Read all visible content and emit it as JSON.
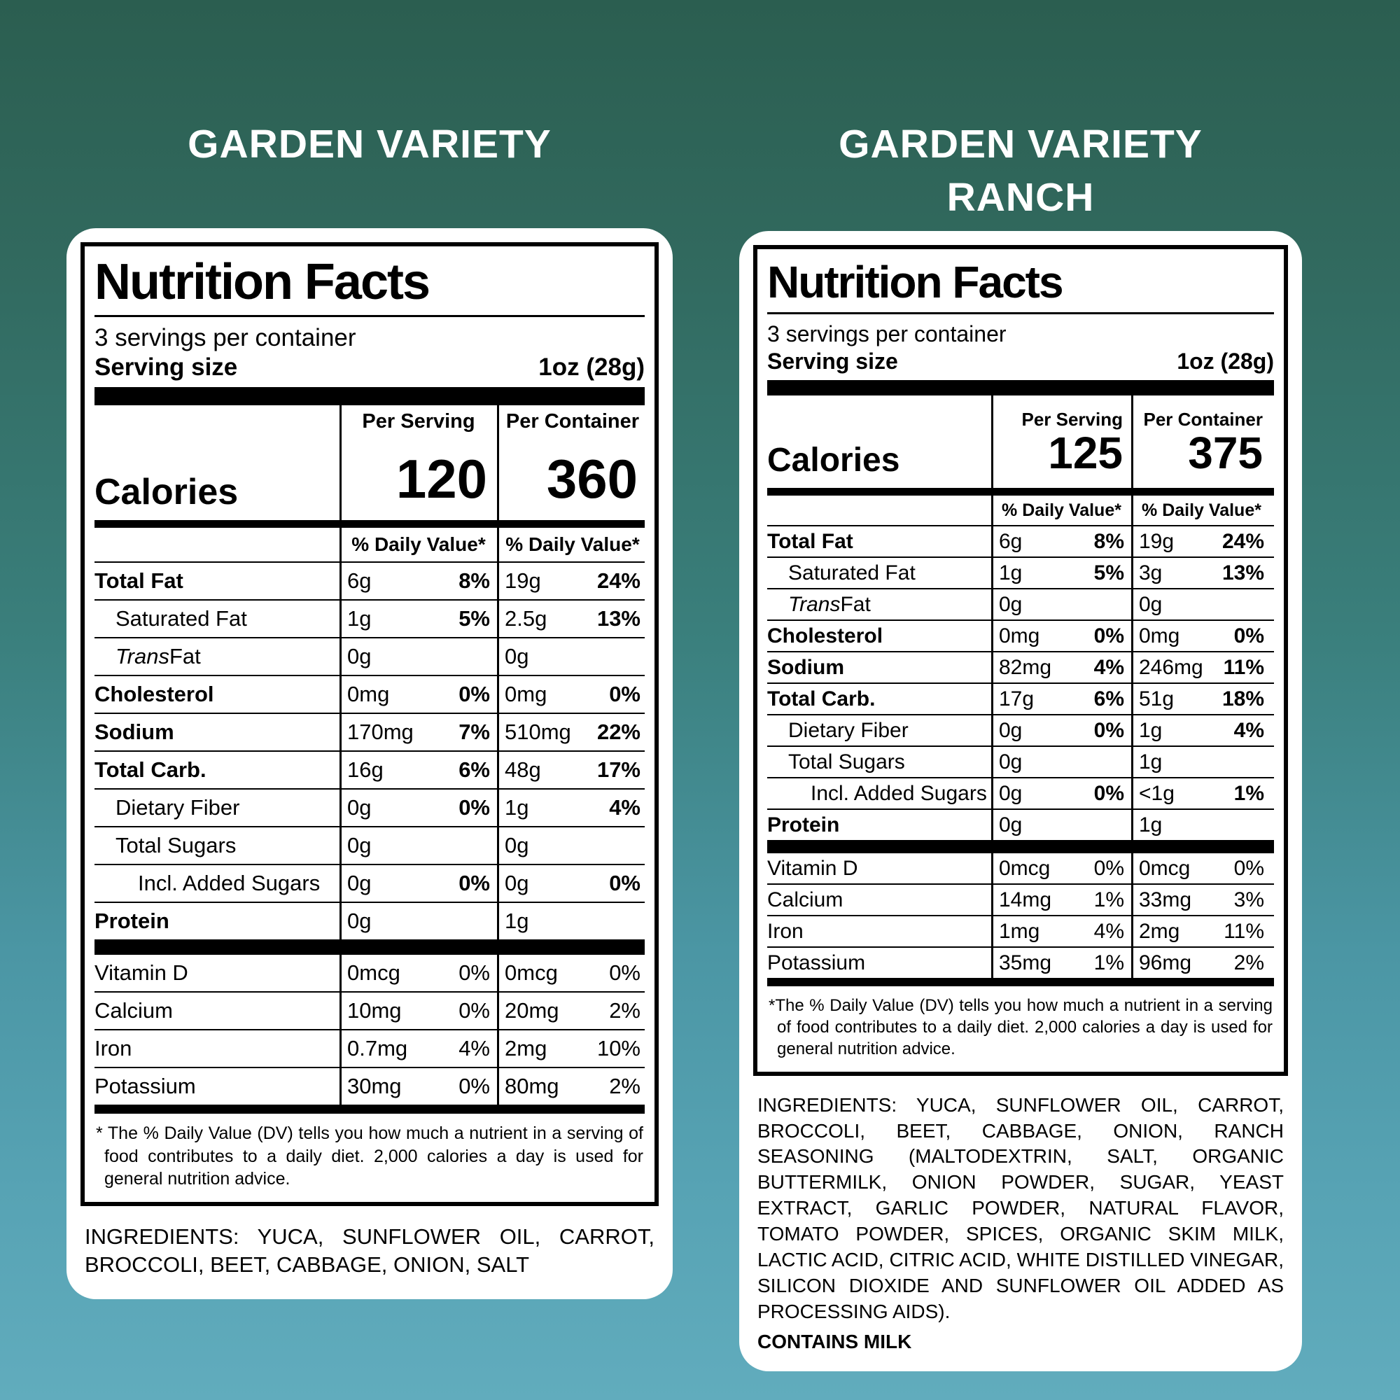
{
  "background": {
    "gradient_top": "#2b5e50",
    "gradient_mid": "#3a7f7c",
    "gradient_bottom": "#61acbd",
    "title_color": "#ffffff"
  },
  "labels": [
    {
      "title_line1": "GARDEN VARIETY",
      "title_line2": "",
      "nf": {
        "heading": "Nutrition Facts",
        "servings_per_container": "3 servings per container",
        "serving_size_label": "Serving size",
        "serving_size_value": "1oz (28g)",
        "per_serving_header": "Per Serving",
        "per_container_header": "Per Container",
        "calories_label": "Calories",
        "calories_per_serving": "120",
        "calories_per_container": "360",
        "daily_value_header": "% Daily Value*",
        "rows": [
          {
            "name": "Total Fat",
            "style": "bold",
            "s_amt": "6g",
            "s_dv": "8%",
            "c_amt": "19g",
            "c_dv": "24%"
          },
          {
            "name": "Saturated Fat",
            "style": "indent",
            "s_amt": "1g",
            "s_dv": "5%",
            "c_amt": "2.5g",
            "c_dv": "13%"
          },
          {
            "name": "Trans Fat",
            "style": "indent-italic",
            "s_amt": "0g",
            "s_dv": "",
            "c_amt": "0g",
            "c_dv": ""
          },
          {
            "name": "Cholesterol",
            "style": "bold",
            "s_amt": "0mg",
            "s_dv": "0%",
            "c_amt": "0mg",
            "c_dv": "0%"
          },
          {
            "name": "Sodium",
            "style": "bold",
            "s_amt": "170mg",
            "s_dv": "7%",
            "c_amt": "510mg",
            "c_dv": "22%"
          },
          {
            "name": "Total Carb.",
            "style": "bold",
            "s_amt": "16g",
            "s_dv": "6%",
            "c_amt": "48g",
            "c_dv": "17%"
          },
          {
            "name": "Dietary Fiber",
            "style": "indent",
            "s_amt": "0g",
            "s_dv": "0%",
            "c_amt": "1g",
            "c_dv": "4%"
          },
          {
            "name": "Total Sugars",
            "style": "indent",
            "s_amt": "0g",
            "s_dv": "",
            "c_amt": "0g",
            "c_dv": ""
          },
          {
            "name": "Incl. Added Sugars",
            "style": "indent2",
            "s_amt": "0g",
            "s_dv": "0%",
            "c_amt": "0g",
            "c_dv": "0%"
          },
          {
            "name": "Protein",
            "style": "bold",
            "s_amt": "0g",
            "s_dv": "",
            "c_amt": "1g",
            "c_dv": ""
          }
        ],
        "vitamin_rows": [
          {
            "name": "Vitamin D",
            "style": "plain",
            "s_amt": "0mcg",
            "s_dv": "0%",
            "c_amt": "0mcg",
            "c_dv": "0%"
          },
          {
            "name": "Calcium",
            "style": "plain",
            "s_amt": "10mg",
            "s_dv": "0%",
            "c_amt": "20mg",
            "c_dv": "2%"
          },
          {
            "name": "Iron",
            "style": "plain",
            "s_amt": "0.7mg",
            "s_dv": "4%",
            "c_amt": "2mg",
            "c_dv": "10%"
          },
          {
            "name": "Potassium",
            "style": "plain",
            "s_amt": "30mg",
            "s_dv": "0%",
            "c_amt": "80mg",
            "c_dv": "2%"
          }
        ],
        "footnote": "* The % Daily Value (DV) tells you how much a nutrient in a serving of food contributes to a daily diet. 2,000 calories a day is used for general nutrition advice."
      },
      "ingredients": "INGREDIENTS: YUCA, SUNFLOWER OIL, CARROT, BROCCOLI, BEET, CABBAGE, ONION, SALT",
      "contains": ""
    },
    {
      "title_line1": "GARDEN VARIETY",
      "title_line2": "RANCH",
      "nf": {
        "heading": "Nutrition Facts",
        "servings_per_container": "3 servings per container",
        "serving_size_label": "Serving size",
        "serving_size_value": "1oz (28g)",
        "per_serving_header": "Per Serving",
        "per_container_header": "Per Container",
        "calories_label": "Calories",
        "calories_per_serving": "125",
        "calories_per_container": "375",
        "daily_value_header": "% Daily Value*",
        "rows": [
          {
            "name": "Total Fat",
            "style": "bold",
            "s_amt": "6g",
            "s_dv": "8%",
            "c_amt": "19g",
            "c_dv": "24%"
          },
          {
            "name": "Saturated Fat",
            "style": "indent",
            "s_amt": "1g",
            "s_dv": "5%",
            "c_amt": "3g",
            "c_dv": "13%"
          },
          {
            "name": "Trans Fat",
            "style": "indent-italic",
            "s_amt": "0g",
            "s_dv": "",
            "c_amt": "0g",
            "c_dv": ""
          },
          {
            "name": "Cholesterol",
            "style": "bold",
            "s_amt": "0mg",
            "s_dv": "0%",
            "c_amt": "0mg",
            "c_dv": "0%"
          },
          {
            "name": "Sodium",
            "style": "bold",
            "s_amt": "82mg",
            "s_dv": "4%",
            "c_amt": "246mg",
            "c_dv": "11%"
          },
          {
            "name": "Total Carb.",
            "style": "bold",
            "s_amt": "17g",
            "s_dv": "6%",
            "c_amt": "51g",
            "c_dv": "18%"
          },
          {
            "name": "Dietary Fiber",
            "style": "indent",
            "s_amt": "0g",
            "s_dv": "0%",
            "c_amt": "1g",
            "c_dv": "4%"
          },
          {
            "name": "Total Sugars",
            "style": "indent",
            "s_amt": "0g",
            "s_dv": "",
            "c_amt": "1g",
            "c_dv": ""
          },
          {
            "name": "Incl. Added Sugars",
            "style": "indent2",
            "s_amt": "0g",
            "s_dv": "0%",
            "c_amt": "<1g",
            "c_dv": "1%"
          },
          {
            "name": "Protein",
            "style": "bold",
            "s_amt": "0g",
            "s_dv": "",
            "c_amt": "1g",
            "c_dv": ""
          }
        ],
        "vitamin_rows": [
          {
            "name": "Vitamin D",
            "style": "plain",
            "s_amt": "0mcg",
            "s_dv": "0%",
            "c_amt": "0mcg",
            "c_dv": "0%"
          },
          {
            "name": "Calcium",
            "style": "plain",
            "s_amt": "14mg",
            "s_dv": "1%",
            "c_amt": "33mg",
            "c_dv": "3%"
          },
          {
            "name": "Iron",
            "style": "plain",
            "s_amt": "1mg",
            "s_dv": "4%",
            "c_amt": "2mg",
            "c_dv": "11%"
          },
          {
            "name": "Potassium",
            "style": "plain",
            "s_amt": "35mg",
            "s_dv": "1%",
            "c_amt": "96mg",
            "c_dv": "2%"
          }
        ],
        "footnote": "*The % Daily Value (DV) tells you how much a nutrient in a serving of food contributes to a daily diet. 2,000 calories a day is used for general nutrition advice."
      },
      "ingredients": "INGREDIENTS: YUCA, SUNFLOWER OIL, CARROT, BROCCOLI, BEET, CABBAGE, ONION, RANCH SEASONING (MALTODEXTRIN, SALT, ORGANIC BUTTERMILK, ONION POWDER, SUGAR, YEAST EXTRACT, GARLIC POWDER, NATURAL FLAVOR, TOMATO POWDER, SPICES, ORGANIC SKIM MILK, LACTIC ACID, CITRIC ACID, WHITE DISTILLED VINEGAR, SILICON DIOXIDE AND SUNFLOWER OIL ADDED AS PROCESSING AIDS).",
      "contains": "CONTAINS MILK"
    }
  ]
}
